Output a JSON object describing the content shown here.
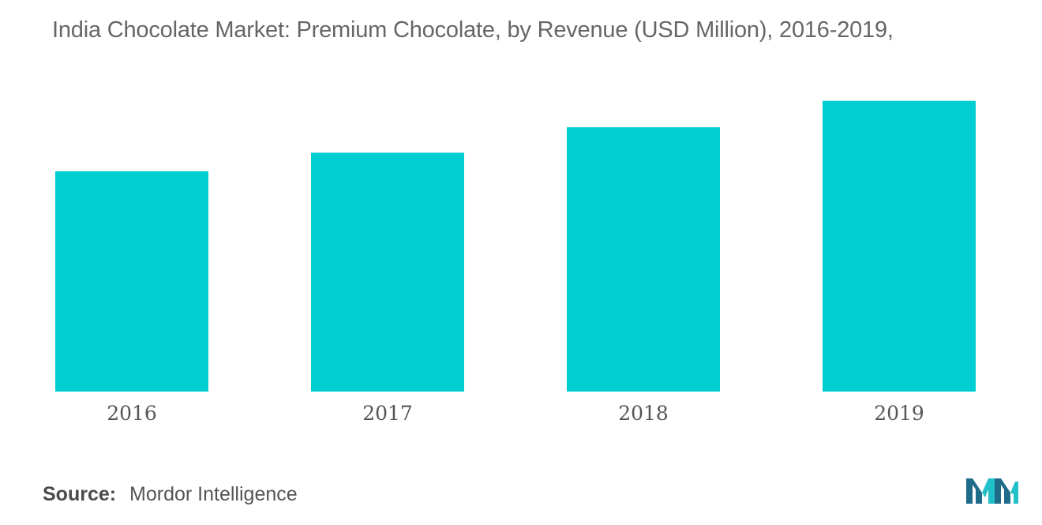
{
  "chart_data": {
    "type": "bar",
    "title": "India Chocolate Market: Premium Chocolate, by Revenue (USD Million), 2016-2019,",
    "categories": [
      "2016",
      "2017",
      "2018",
      "2019"
    ],
    "values": [
      225,
      244,
      270,
      297
    ],
    "ylim": [
      0,
      300
    ],
    "xlabel": "",
    "ylabel": "",
    "grid": false,
    "legend": "none",
    "bar_color": "#00CED1"
  },
  "footer": {
    "source_label": "Source:",
    "source_value": "Mordor Intelligence"
  },
  "logo": {
    "icon": "mordor-intelligence-logo",
    "colors": [
      "#1f6b8a",
      "#22c0c8"
    ]
  }
}
